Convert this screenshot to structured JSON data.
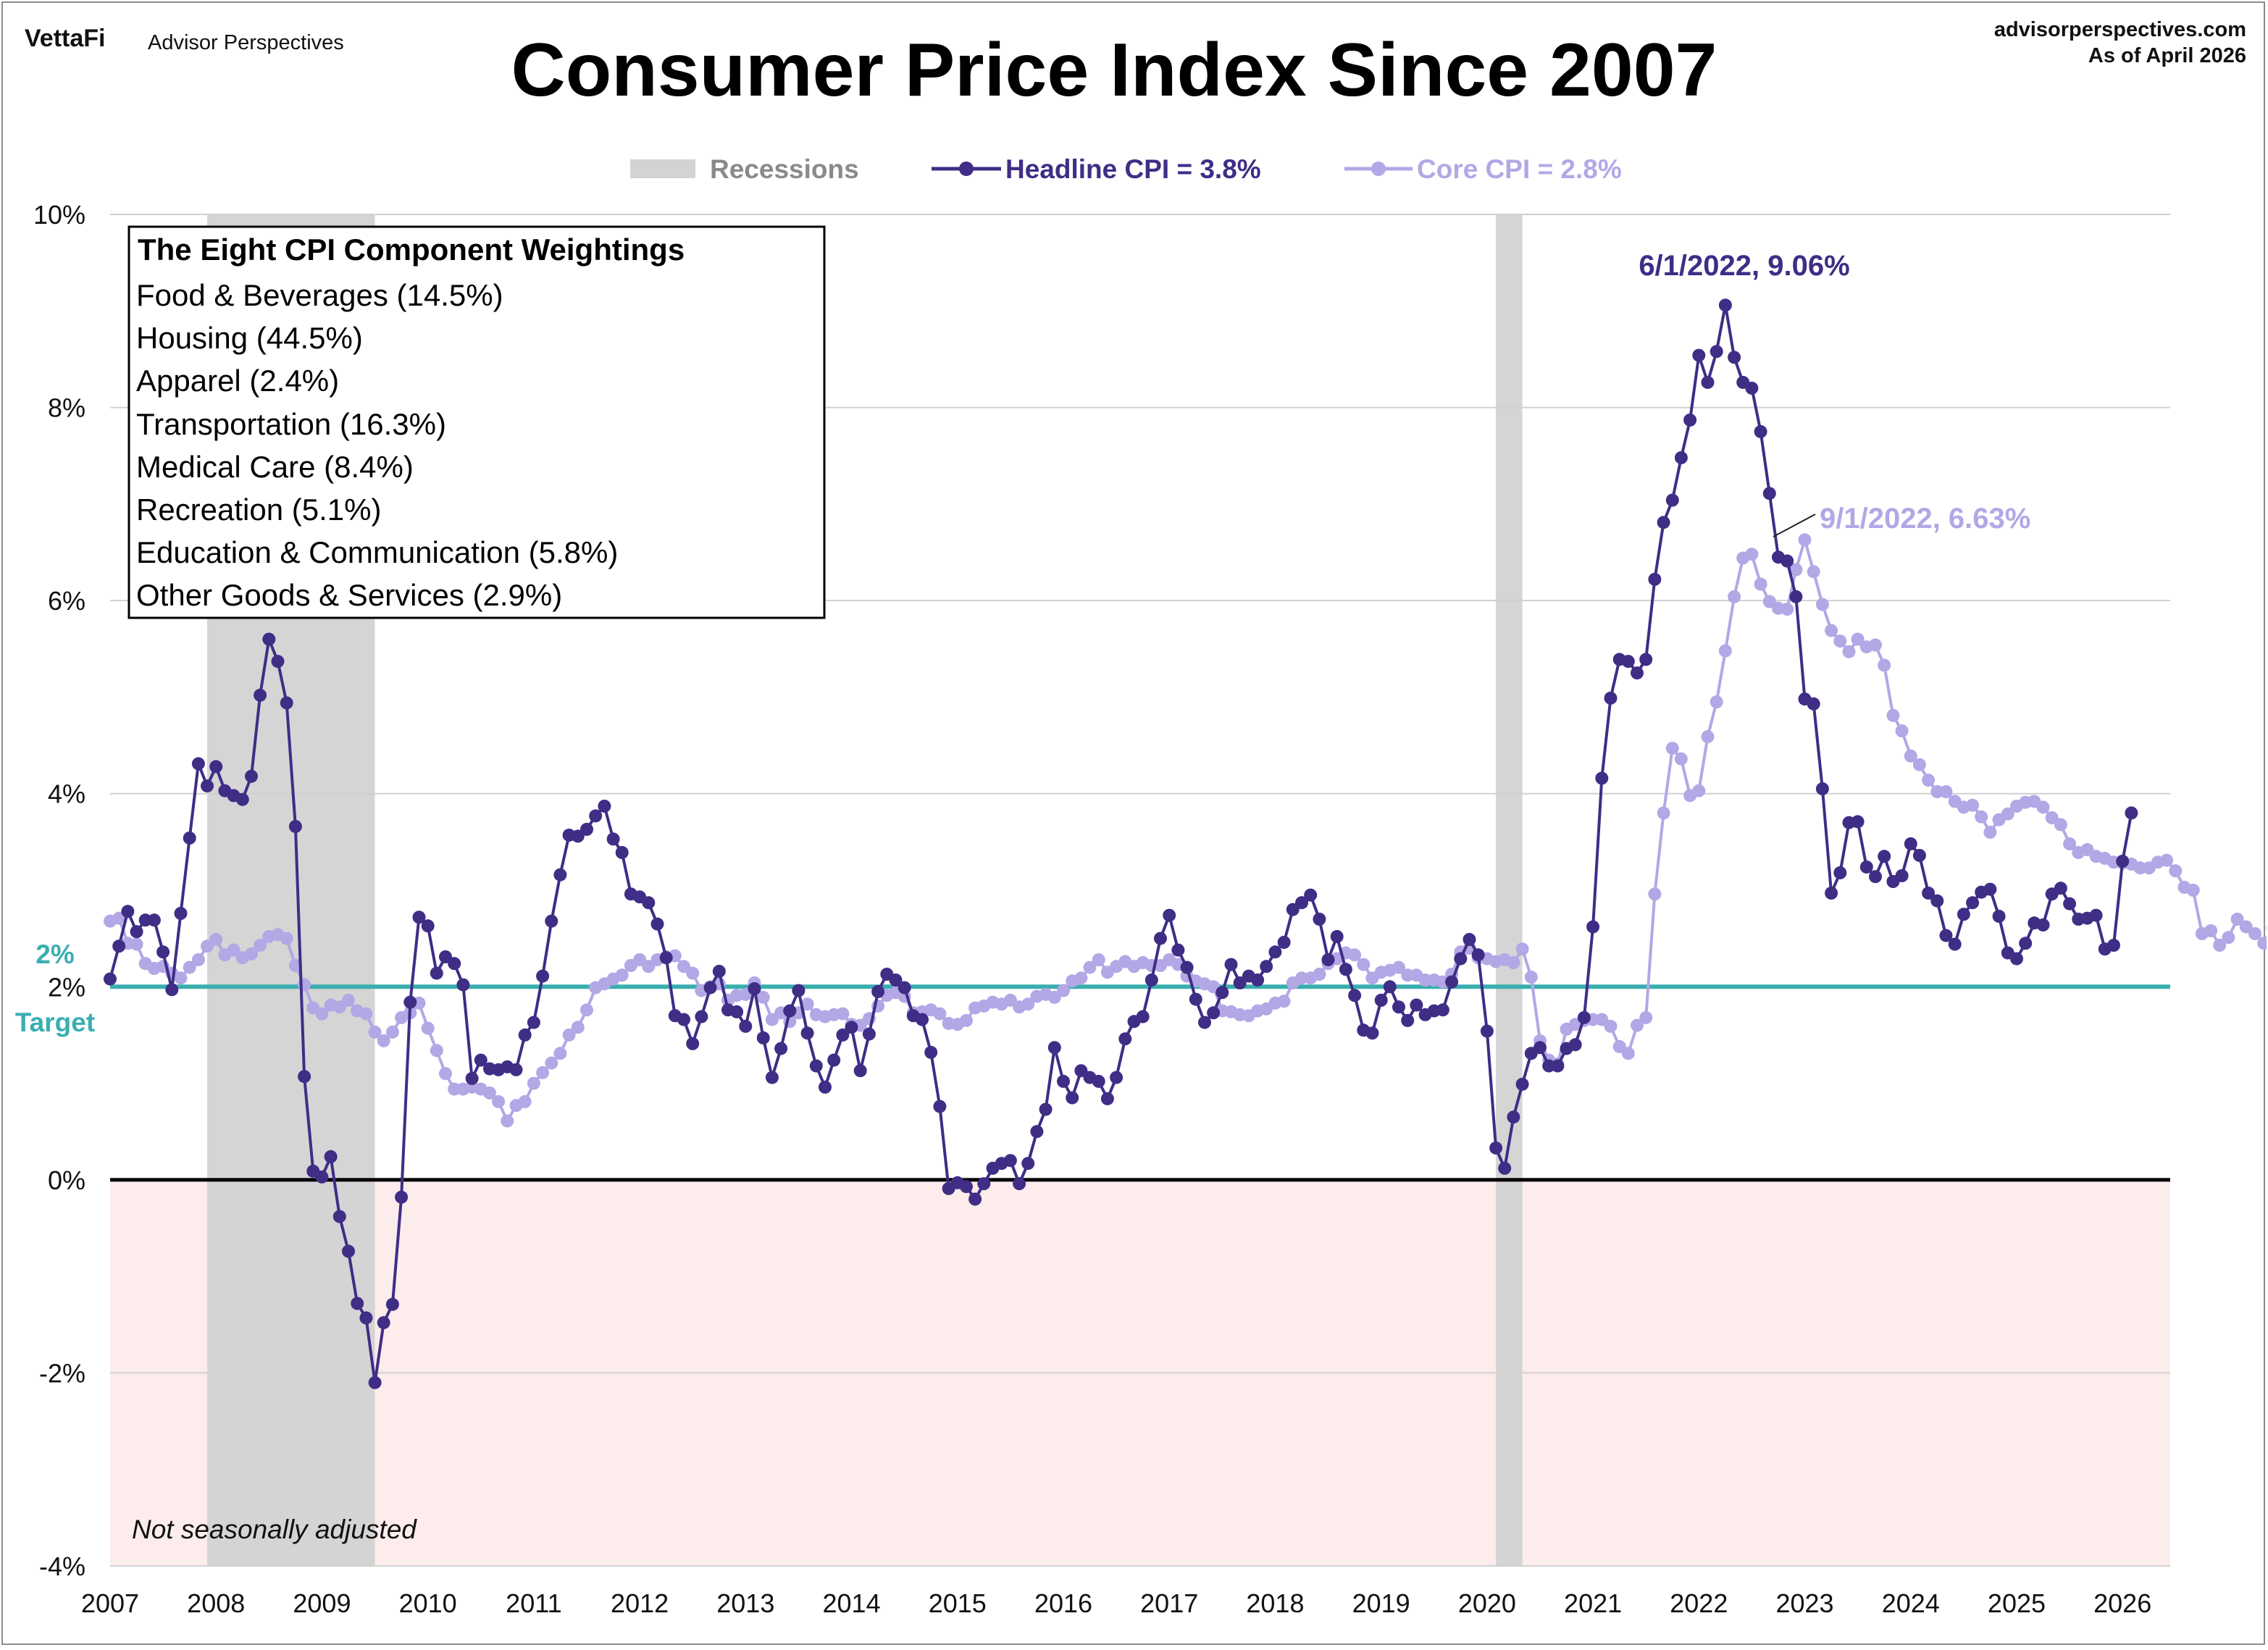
{
  "header": {
    "brand": "VettaFi",
    "brand_sub": "Advisor Perspectives",
    "site": "advisorperspectives.com",
    "asof": "As of April 2026"
  },
  "legend": {
    "recessions": "Recessions",
    "headline": "Headline CPI = 3.8%",
    "core": "Core CPI =  2.8%"
  },
  "weights_box": {
    "title": "The Eight CPI Component Weightings",
    "items": [
      "Food & Beverages (14.5%)",
      "Housing (44.5%)",
      "Apparel (2.4%)",
      "Transportation (16.3%)",
      "Medical Care (8.4%)",
      "Recreation (5.1%)",
      "Education & Communication (5.8%)",
      "Other Goods & Services (2.9%)"
    ]
  },
  "notes": {
    "target_value": "2%",
    "target_label": "Target",
    "nsa": "Not seasonally adjusted",
    "headline_peak": "6/1/2022, 9.06%",
    "core_peak": "9/1/2022, 6.63%"
  },
  "colors": {
    "headline": "#3f2d86",
    "core": "#b3a7e6",
    "target": "#3aaeb0",
    "recession": "#d3d3d3",
    "negative_zone": "#fdecec"
  },
  "chart_data": {
    "type": "line",
    "title": "Consumer Price Index Since 2007",
    "xlabel": "",
    "ylabel": "",
    "x_range": [
      "2007-01",
      "2026-04"
    ],
    "xticks": [
      "2007",
      "2008",
      "2009",
      "2010",
      "2011",
      "2012",
      "2013",
      "2014",
      "2015",
      "2016",
      "2017",
      "2018",
      "2019",
      "2020",
      "2021",
      "2022",
      "2023",
      "2024",
      "2025",
      "2026"
    ],
    "ylim": [
      -4,
      10
    ],
    "yticks": [
      "-4%",
      "-2%",
      "0%",
      "2%",
      "4%",
      "6%",
      "8%",
      "10%"
    ],
    "grid": true,
    "legend_position": "top-center",
    "target": 2,
    "recessions": [
      [
        "2007-12",
        "2009-06"
      ],
      [
        "2020-02",
        "2020-04"
      ]
    ],
    "series": [
      {
        "name": "Headline CPI = 3.8%",
        "start": "2007-01",
        "values": [
          2.08,
          2.42,
          2.78,
          2.57,
          2.69,
          2.69,
          2.36,
          1.97,
          2.76,
          3.54,
          4.31,
          4.08,
          4.28,
          4.03,
          3.98,
          3.94,
          4.18,
          5.02,
          5.6,
          5.37,
          4.94,
          3.66,
          1.07,
          0.09,
          0.03,
          0.24,
          -0.38,
          -0.74,
          -1.28,
          -1.43,
          -2.1,
          -1.48,
          -1.29,
          -0.18,
          1.84,
          2.72,
          2.63,
          2.14,
          2.31,
          2.24,
          2.02,
          1.05,
          1.24,
          1.15,
          1.14,
          1.17,
          1.14,
          1.5,
          1.63,
          2.11,
          2.68,
          3.16,
          3.57,
          3.56,
          3.63,
          3.77,
          3.87,
          3.53,
          3.39,
          2.96,
          2.93,
          2.87,
          2.65,
          2.3,
          1.7,
          1.66,
          1.41,
          1.69,
          1.99,
          2.16,
          1.76,
          1.74,
          1.59,
          1.98,
          1.47,
          1.06,
          1.36,
          1.75,
          1.96,
          1.52,
          1.18,
          0.96,
          1.24,
          1.5,
          1.58,
          1.13,
          1.51,
          1.95,
          2.13,
          2.07,
          1.99,
          1.7,
          1.66,
          1.32,
          0.76,
          -0.09,
          -0.03,
          -0.07,
          -0.2,
          -0.04,
          0.12,
          0.17,
          0.2,
          -0.04,
          0.17,
          0.5,
          0.73,
          1.37,
          1.02,
          0.85,
          1.13,
          1.06,
          1.02,
          0.84,
          1.06,
          1.46,
          1.64,
          1.69,
          2.07,
          2.5,
          2.74,
          2.38,
          2.2,
          1.87,
          1.63,
          1.73,
          1.94,
          2.23,
          2.04,
          2.11,
          2.07,
          2.21,
          2.36,
          2.46,
          2.8,
          2.87,
          2.95,
          2.7,
          2.28,
          2.52,
          2.18,
          1.91,
          1.55,
          1.52,
          1.86,
          2.0,
          1.79,
          1.65,
          1.81,
          1.71,
          1.75,
          1.76,
          2.05,
          2.29,
          2.49,
          2.33,
          1.54,
          0.33,
          0.12,
          0.65,
          0.99,
          1.31,
          1.37,
          1.18,
          1.18,
          1.36,
          1.4,
          1.68,
          2.62,
          4.16,
          4.99,
          5.39,
          5.37,
          5.25,
          5.39,
          6.22,
          6.81,
          7.04,
          7.48,
          7.87,
          8.54,
          8.26,
          8.58,
          9.06,
          8.52,
          8.26,
          8.2,
          7.75,
          7.11,
          6.45,
          6.41,
          6.04,
          4.98,
          4.93,
          4.05,
          2.97,
          3.18,
          3.7,
          3.71,
          3.24,
          3.14,
          3.35,
          3.09,
          3.15,
          3.48,
          3.36,
          2.97,
          2.89,
          2.53,
          2.44,
          2.75,
          2.87,
          2.98,
          3.01,
          2.73,
          2.35,
          2.29,
          2.45,
          2.66,
          2.64,
          2.96,
          3.02,
          2.86,
          2.7,
          2.71,
          2.74,
          2.39,
          2.43,
          3.3,
          3.8
        ]
      },
      {
        "name": "Core CPI =  2.8%",
        "start": "2007-01",
        "values": [
          2.68,
          2.71,
          2.45,
          2.44,
          2.24,
          2.19,
          2.21,
          2.14,
          2.09,
          2.2,
          2.28,
          2.42,
          2.49,
          2.33,
          2.38,
          2.3,
          2.34,
          2.43,
          2.52,
          2.54,
          2.5,
          2.22,
          2.02,
          1.78,
          1.72,
          1.81,
          1.79,
          1.86,
          1.75,
          1.72,
          1.53,
          1.44,
          1.53,
          1.68,
          1.73,
          1.83,
          1.57,
          1.34,
          1.1,
          0.94,
          0.94,
          0.96,
          0.94,
          0.9,
          0.81,
          0.61,
          0.77,
          0.81,
          1.0,
          1.11,
          1.21,
          1.31,
          1.5,
          1.58,
          1.76,
          1.99,
          2.03,
          2.08,
          2.12,
          2.22,
          2.28,
          2.21,
          2.28,
          2.31,
          2.32,
          2.21,
          2.14,
          1.96,
          2.0,
          2.03,
          1.86,
          1.91,
          1.92,
          2.04,
          1.89,
          1.66,
          1.73,
          1.64,
          1.73,
          1.82,
          1.71,
          1.69,
          1.71,
          1.72,
          1.61,
          1.6,
          1.67,
          1.8,
          1.91,
          1.94,
          1.9,
          1.73,
          1.74,
          1.76,
          1.72,
          1.62,
          1.61,
          1.65,
          1.78,
          1.8,
          1.84,
          1.82,
          1.86,
          1.79,
          1.82,
          1.9,
          1.92,
          1.89,
          1.96,
          2.06,
          2.09,
          2.2,
          2.28,
          2.15,
          2.21,
          2.26,
          2.21,
          2.25,
          2.22,
          2.22,
          2.28,
          2.23,
          2.11,
          2.06,
          2.03,
          2.0,
          1.75,
          1.74,
          1.71,
          1.7,
          1.75,
          1.77,
          1.83,
          1.85,
          2.04,
          2.09,
          2.09,
          2.13,
          2.24,
          2.29,
          2.35,
          2.33,
          2.23,
          2.09,
          2.15,
          2.17,
          2.2,
          2.12,
          2.12,
          2.07,
          2.07,
          2.05,
          2.13,
          2.36,
          2.4,
          2.3,
          2.29,
          2.26,
          2.28,
          2.25,
          2.39,
          2.1,
          1.44,
          1.24,
          1.2,
          1.56,
          1.61,
          1.65,
          1.66,
          1.66,
          1.59,
          1.38,
          1.31,
          1.6,
          1.68,
          2.96,
          3.8,
          4.47,
          4.36,
          3.98,
          4.03,
          4.59,
          4.95,
          5.48,
          6.04,
          6.44,
          6.48,
          6.17,
          5.99,
          5.92,
          5.91,
          6.32,
          6.63,
          6.3,
          5.96,
          5.69,
          5.58,
          5.47,
          5.6,
          5.52,
          5.54,
          5.33,
          4.81,
          4.65,
          4.39,
          4.3,
          4.14,
          4.02,
          4.02,
          3.92,
          3.86,
          3.88,
          3.76,
          3.6,
          3.73,
          3.79,
          3.87,
          3.91,
          3.92,
          3.86,
          3.75,
          3.68,
          3.48,
          3.39,
          3.42,
          3.35,
          3.33,
          3.29,
          3.28,
          3.27,
          3.23,
          3.23,
          3.29,
          3.31,
          3.2,
          3.03,
          3.0,
          2.55,
          2.58,
          2.43,
          2.51,
          2.7,
          2.62,
          2.55,
          2.45,
          2.61,
          2.75
        ]
      }
    ]
  }
}
